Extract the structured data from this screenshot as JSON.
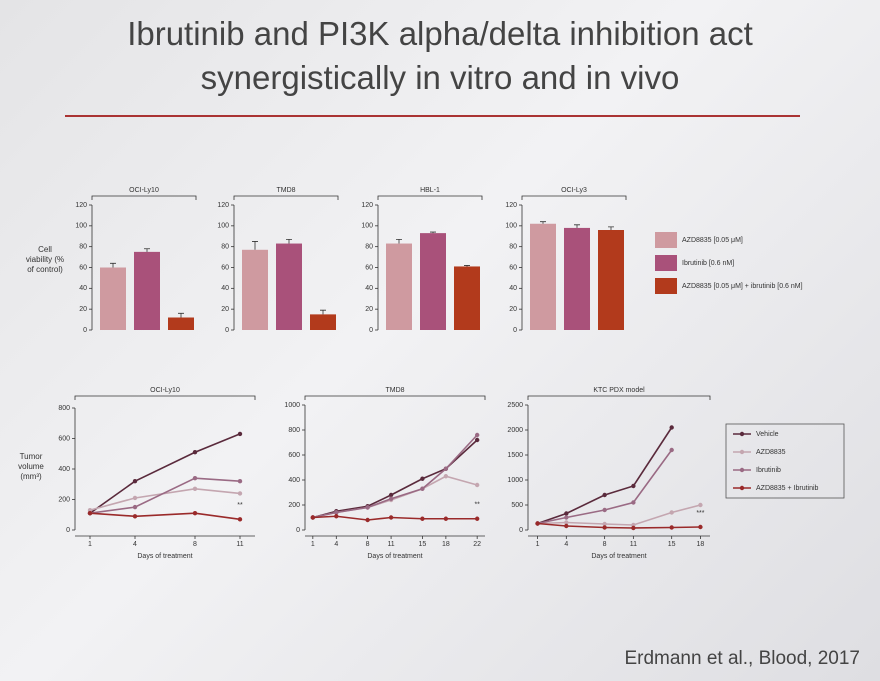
{
  "title": "Ibrutinib and PI3K alpha/delta inhibition act synergistically in vitro and in vivo",
  "citation": "Erdmann et al., Blood, 2017",
  "chart_data": [
    {
      "type": "bar",
      "y_label": "Cell viability (% of control)",
      "categories": [
        "OCI-Ly10",
        "TMD8",
        "HBL-1",
        "OCI-Ly3"
      ],
      "ylim": [
        0,
        120
      ],
      "yticks": [
        0,
        20,
        40,
        60,
        80,
        100,
        120
      ],
      "series": [
        {
          "name": "AZD8835 [0.05 μM]",
          "color": "#cf9aa0",
          "values": [
            60,
            77,
            83,
            102
          ],
          "errors": [
            4,
            8,
            4,
            2
          ]
        },
        {
          "name": "Ibrutinib [0.6 nM]",
          "color": "#a9517a",
          "values": [
            75,
            83,
            93,
            98
          ],
          "errors": [
            3,
            4,
            1,
            3
          ]
        },
        {
          "name": "AZD8835 [0.05 μM] + ibrutinib [0.6 nM]",
          "color": "#b23a1c",
          "values": [
            12,
            15,
            61,
            96
          ],
          "errors": [
            4,
            4,
            1,
            3
          ]
        }
      ]
    },
    {
      "type": "line",
      "title": "OCI-Ly10",
      "y_label": "Tumor volume (mm³)",
      "x_label": "Days of treatment",
      "annotation": "**",
      "x": [
        1,
        4,
        8,
        11
      ],
      "xlim": [
        0,
        12
      ],
      "xticks": [
        1,
        4,
        8,
        11
      ],
      "ylim": [
        0,
        800
      ],
      "yticks": [
        0,
        200,
        400,
        600,
        800
      ],
      "series": [
        {
          "color": "#5a2a3c",
          "values": [
            110,
            320,
            510,
            630
          ]
        },
        {
          "color": "#c4a6b0",
          "values": [
            130,
            210,
            270,
            240
          ]
        },
        {
          "color": "#9a6a84",
          "values": [
            110,
            150,
            340,
            320
          ]
        },
        {
          "color": "#9a2a2a",
          "values": [
            110,
            90,
            110,
            70
          ]
        }
      ]
    },
    {
      "type": "line",
      "title": "TMD8",
      "x_label": "Days of treatment",
      "annotation": "**",
      "x": [
        1,
        4,
        8,
        11,
        15,
        18,
        22
      ],
      "xlim": [
        0,
        23
      ],
      "xticks": [
        1,
        4,
        8,
        11,
        15,
        18,
        22
      ],
      "ylim": [
        0,
        1000
      ],
      "yticks": [
        0,
        200,
        400,
        600,
        800,
        1000
      ],
      "series": [
        {
          "color": "#5a2a3c",
          "values": [
            100,
            150,
            190,
            280,
            410,
            490,
            720
          ]
        },
        {
          "color": "#c4a6b0",
          "values": [
            100,
            140,
            180,
            240,
            330,
            430,
            360
          ]
        },
        {
          "color": "#9a6a84",
          "values": [
            100,
            140,
            180,
            250,
            330,
            490,
            760
          ]
        },
        {
          "color": "#9a2a2a",
          "values": [
            100,
            110,
            80,
            100,
            90,
            90,
            90
          ]
        }
      ]
    },
    {
      "type": "line",
      "title": "KTC PDX model",
      "x_label": "Days of treatment",
      "annotation": "***",
      "x": [
        1,
        4,
        8,
        11,
        15,
        18
      ],
      "xlim": [
        0,
        19
      ],
      "xticks": [
        1,
        4,
        8,
        11,
        15,
        18
      ],
      "ylim": [
        0,
        2500
      ],
      "yticks": [
        0,
        500,
        1000,
        1500,
        2000,
        2500
      ],
      "series": [
        {
          "name": "Vehicle",
          "color": "#5a2a3c",
          "values": [
            130,
            330,
            700,
            880,
            2050,
            null
          ]
        },
        {
          "name": "AZD8835",
          "color": "#c4a6b0",
          "values": [
            130,
            150,
            120,
            100,
            350,
            500
          ]
        },
        {
          "name": "Ibrutinib",
          "color": "#9a6a84",
          "values": [
            130,
            250,
            400,
            550,
            1600,
            null
          ]
        },
        {
          "name": "AZD8835 + Ibrutinib",
          "color": "#9a2a2a",
          "values": [
            130,
            80,
            50,
            40,
            50,
            60
          ]
        }
      ]
    }
  ]
}
